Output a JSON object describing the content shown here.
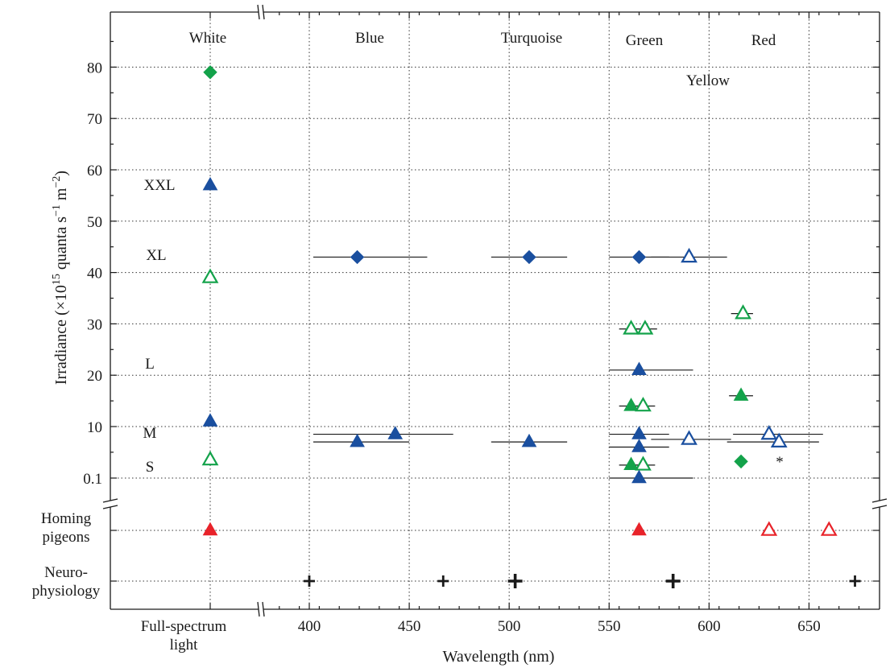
{
  "chart_data": {
    "type": "scatter",
    "xlabel": "Wavelength (nm)",
    "ylabel": "Irradiance (×10",
    "ylabel_exp": "15",
    "ylabel_rest": " quanta s",
    "ylabel_exp2": "−1",
    "ylabel_rest2": " m",
    "ylabel_exp3": "−2",
    "ylabel_end": ")",
    "x_category_label": [
      "Full-spectrum",
      "light"
    ],
    "xlim": [
      375,
      690
    ],
    "x_ticks": [
      "400",
      "450",
      "500",
      "550",
      "600",
      "650"
    ],
    "y_ticks": [
      "0.1",
      "10",
      "20",
      "30",
      "40",
      "50",
      "60",
      "70",
      "80"
    ],
    "grid": true,
    "colour_bands": [
      "White",
      "Blue",
      "Turquoise",
      "Green",
      "Yellow",
      "Red"
    ],
    "intensity_levels": [
      "S",
      "M",
      "L",
      "XL",
      "XXL"
    ],
    "lower_rows": [
      [
        "Homing",
        "pigeons"
      ],
      [
        "Neuro-",
        "physiology"
      ]
    ],
    "annotation": "*",
    "colors": {
      "blue": "#1a4f9f",
      "green": "#13a24a",
      "red": "#e8232a",
      "black": "#1a1a1a"
    },
    "points": [
      {
        "x": "full",
        "y": 79,
        "marker": "diamond",
        "color": "green",
        "filled": true
      },
      {
        "x": "full",
        "y": 57,
        "marker": "triangle",
        "color": "blue",
        "filled": true
      },
      {
        "x": "full",
        "y": 39,
        "marker": "triangle",
        "color": "green",
        "filled": false
      },
      {
        "x": "full",
        "y": 11,
        "marker": "triangle",
        "color": "blue",
        "filled": true
      },
      {
        "x": "full",
        "y": 3.5,
        "marker": "triangle",
        "color": "green",
        "filled": false
      },
      {
        "x": 424,
        "y": 43,
        "marker": "diamond",
        "color": "blue",
        "filled": true,
        "xerr": [
          402,
          459
        ]
      },
      {
        "x": 510,
        "y": 43,
        "marker": "diamond",
        "color": "blue",
        "filled": true,
        "xerr": [
          491,
          529
        ]
      },
      {
        "x": 565,
        "y": 43,
        "marker": "diamond",
        "color": "blue",
        "filled": true,
        "xerr": [
          550,
          580
        ]
      },
      {
        "x": 590,
        "y": 43,
        "marker": "triangle",
        "color": "blue",
        "filled": false,
        "xerr": [
          571,
          609
        ]
      },
      {
        "x": 617,
        "y": 32,
        "marker": "triangle",
        "color": "green",
        "filled": false,
        "xerr": [
          611,
          622
        ]
      },
      {
        "x": 561,
        "y": 29,
        "marker": "triangle",
        "color": "green",
        "filled": false,
        "xerr": [
          555,
          567
        ]
      },
      {
        "x": 568,
        "y": 29,
        "marker": "triangle",
        "color": "green",
        "filled": false,
        "xerr": [
          562,
          574
        ]
      },
      {
        "x": 565,
        "y": 21,
        "marker": "triangle",
        "color": "blue",
        "filled": true,
        "xerr": [
          550,
          592
        ]
      },
      {
        "x": 616,
        "y": 16,
        "marker": "triangle",
        "color": "green",
        "filled": true,
        "xerr": [
          610,
          622
        ]
      },
      {
        "x": 561,
        "y": 14,
        "marker": "triangle",
        "color": "green",
        "filled": true,
        "xerr": [
          555,
          567
        ]
      },
      {
        "x": 567,
        "y": 14,
        "marker": "triangle",
        "color": "green",
        "filled": false,
        "xerr": [
          561,
          573
        ]
      },
      {
        "x": 443,
        "y": 8.5,
        "marker": "triangle",
        "color": "blue",
        "filled": true,
        "xerr": [
          402,
          472
        ]
      },
      {
        "x": 424,
        "y": 7,
        "marker": "triangle",
        "color": "blue",
        "filled": true,
        "xerr": [
          402,
          450
        ]
      },
      {
        "x": 510,
        "y": 7,
        "marker": "triangle",
        "color": "blue",
        "filled": true,
        "xerr": [
          491,
          529
        ]
      },
      {
        "x": 565,
        "y": 8.5,
        "marker": "triangle",
        "color": "blue",
        "filled": true,
        "xerr": [
          550,
          580
        ]
      },
      {
        "x": 565,
        "y": 6,
        "marker": "triangle",
        "color": "blue",
        "filled": true,
        "xerr": [
          550,
          580
        ]
      },
      {
        "x": 590,
        "y": 7.5,
        "marker": "triangle",
        "color": "blue",
        "filled": false,
        "xerr": [
          571,
          611
        ]
      },
      {
        "x": 630,
        "y": 8.5,
        "marker": "triangle",
        "color": "blue",
        "filled": false,
        "xerr": [
          612,
          657
        ]
      },
      {
        "x": 635,
        "y": 7,
        "marker": "triangle",
        "color": "blue",
        "filled": false,
        "xerr": [
          609,
          655
        ]
      },
      {
        "x": 616,
        "y": 3.2,
        "marker": "diamond",
        "color": "green",
        "filled": true
      },
      {
        "x": 561,
        "y": 2.5,
        "marker": "triangle",
        "color": "green",
        "filled": true,
        "xerr": [
          555,
          567
        ]
      },
      {
        "x": 567,
        "y": 2.5,
        "marker": "triangle",
        "color": "green",
        "filled": false,
        "xerr": [
          561,
          573
        ]
      },
      {
        "x": 565,
        "y": 0.1,
        "marker": "triangle",
        "color": "blue",
        "filled": true,
        "xerr": [
          550,
          592
        ]
      }
    ],
    "pigeon_points": [
      {
        "x": "full",
        "marker": "triangle",
        "color": "red",
        "filled": true
      },
      {
        "x": 565,
        "marker": "triangle",
        "color": "red",
        "filled": true
      },
      {
        "x": 630,
        "marker": "triangle",
        "color": "red",
        "filled": false
      },
      {
        "x": 660,
        "marker": "triangle",
        "color": "red",
        "filled": false
      }
    ],
    "neuro_points": [
      {
        "x": 400,
        "size": "small"
      },
      {
        "x": 467,
        "size": "small"
      },
      {
        "x": 503,
        "size": "large"
      },
      {
        "x": 582,
        "size": "large"
      },
      {
        "x": 673,
        "size": "small"
      }
    ]
  }
}
